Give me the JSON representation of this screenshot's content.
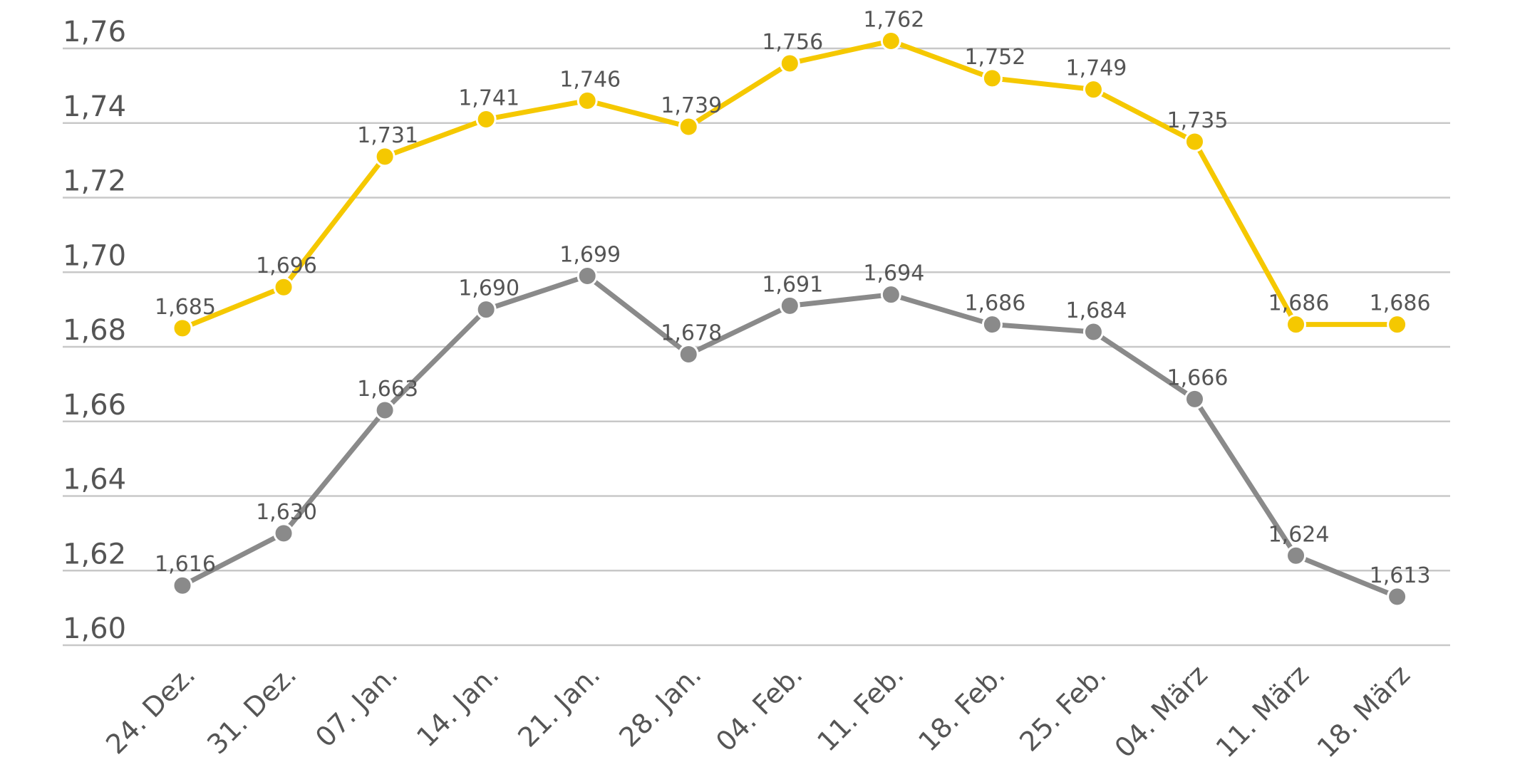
{
  "chart_data": {
    "type": "line",
    "title": "",
    "xlabel": "",
    "ylabel": "",
    "categories": [
      "24. Dez.",
      "31. Dez.",
      "07. Jan.",
      "14. Jan.",
      "21. Jan.",
      "28. Jan.",
      "04. Feb.",
      "11. Feb.",
      "18. Feb.",
      "25. Feb.",
      "04. März",
      "11. März",
      "18. März"
    ],
    "ylim": [
      1.6,
      1.76
    ],
    "yticks": [
      1.6,
      1.62,
      1.64,
      1.66,
      1.68,
      1.7,
      1.72,
      1.74,
      1.76
    ],
    "ytick_labels": [
      "1,60",
      "1,62",
      "1,64",
      "1,66",
      "1,68",
      "1,70",
      "1,72",
      "1,74",
      "1,76"
    ],
    "grid": true,
    "series": [
      {
        "name": "series-yellow",
        "color": "#f5c800",
        "values": [
          1.685,
          1.696,
          1.731,
          1.741,
          1.746,
          1.739,
          1.756,
          1.762,
          1.752,
          1.749,
          1.735,
          1.686,
          1.686
        ],
        "labels": [
          "1,685",
          "1,696",
          "1,731",
          "1,741",
          "1,746",
          "1,739",
          "1,756",
          "1,762",
          "1,752",
          "1,749",
          "1,735",
          "1,686",
          "1,686"
        ]
      },
      {
        "name": "series-gray",
        "color": "#8a8a8a",
        "values": [
          1.616,
          1.63,
          1.663,
          1.69,
          1.699,
          1.678,
          1.691,
          1.694,
          1.686,
          1.684,
          1.666,
          1.624,
          1.613
        ],
        "labels": [
          "1,616",
          "1,630",
          "1,663",
          "1,690",
          "1,699",
          "1,678",
          "1,691",
          "1,694",
          "1,686",
          "1,684",
          "1,666",
          "1,624",
          "1,613"
        ]
      }
    ]
  }
}
